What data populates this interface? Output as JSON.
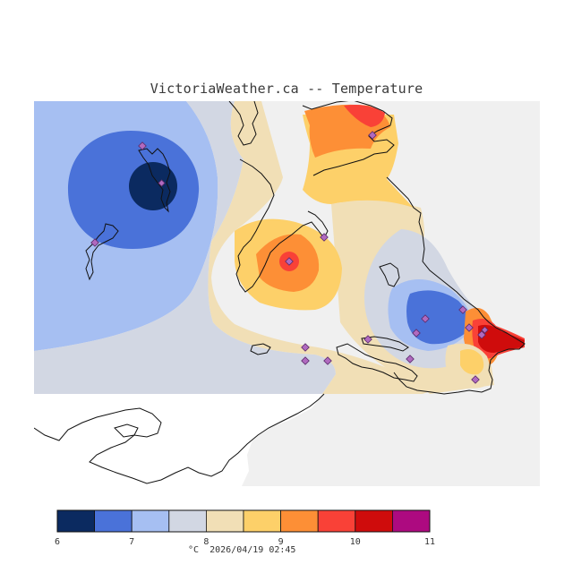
{
  "title": "VictoriaWeather.ca -- Temperature",
  "colorbar": {
    "ticks": [
      "6",
      "7",
      "8",
      "9",
      "10",
      "11"
    ],
    "colors": [
      "#0b2a60",
      "#4a72d9",
      "#a6bff2",
      "#d2d7e3",
      "#f1dfb6",
      "#fdd069",
      "#fd8f36",
      "#f94137",
      "#cf0c0c",
      "#ad0a80"
    ],
    "unit": "°C",
    "timestamp": "2026/04/19 02:45"
  },
  "colors": {
    "background": "#f0f0f0",
    "land_white": "#ffffff",
    "coastline": "#111111",
    "station_fill": "#b06abf",
    "station_stroke": "#5a2a6a"
  },
  "stations_count": 18
}
